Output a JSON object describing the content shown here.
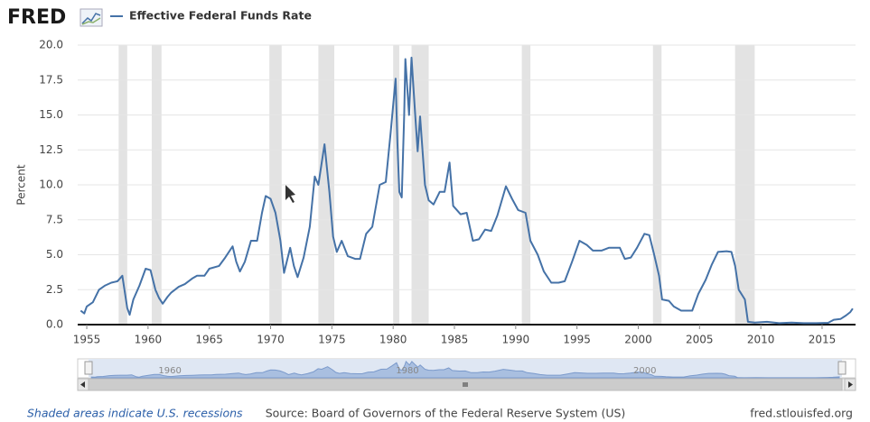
{
  "chart_data": {
    "type": "line",
    "logo": "FRED",
    "ylabel": "Percent",
    "series": [
      {
        "name": "Effective Federal Funds Rate",
        "color": "#4572a7",
        "values": [
          1.0,
          0.8,
          1.3,
          1.6,
          2.5,
          2.8,
          3.0,
          3.1,
          3.5,
          1.2,
          0.7,
          1.8,
          2.8,
          4.0,
          3.9,
          2.5,
          1.9,
          1.5,
          2.0,
          2.3,
          2.7,
          2.9,
          3.3,
          3.5,
          3.5,
          4.0,
          4.2,
          4.8,
          5.6,
          4.5,
          3.8,
          4.5,
          6.0,
          6.0,
          8.0,
          9.2,
          9.0,
          8.0,
          6.0,
          3.7,
          5.5,
          4.2,
          3.4,
          4.8,
          7.0,
          10.6,
          10.0,
          12.9,
          9.5,
          6.3,
          5.2,
          6.0,
          4.9,
          4.7,
          4.7,
          6.5,
          7.0,
          10.0,
          10.2,
          13.8,
          17.6,
          13.0,
          9.5,
          9.1,
          15.0,
          19.0,
          15.0,
          19.1,
          15.0,
          12.4,
          14.9,
          10.0,
          8.9,
          8.6,
          9.5,
          9.5,
          11.6,
          8.5,
          7.9,
          8.0,
          6.0,
          6.1,
          6.8,
          6.7,
          7.8,
          9.9,
          9.0,
          8.2,
          8.0,
          6.0,
          5.0,
          3.8,
          3.0,
          3.0,
          3.1,
          4.5,
          6.0,
          5.7,
          5.3,
          5.3,
          5.5,
          5.5,
          4.7,
          4.8,
          5.5,
          6.5,
          6.4,
          5.0,
          3.5,
          1.8,
          1.7,
          1.3,
          1.0,
          1.0,
          2.2,
          3.2,
          4.3,
          5.2,
          5.25,
          5.2,
          4.2,
          2.5,
          1.8,
          0.2,
          0.15,
          0.2,
          0.1,
          0.15,
          0.1,
          0.1,
          0.13,
          0.35,
          0.4,
          0.65,
          0.9,
          1.15
        ]
      }
    ],
    "x": [
      1954.5,
      1954.8,
      1955.0,
      1955.5,
      1956.0,
      1956.5,
      1957.0,
      1957.5,
      1957.9,
      1958.3,
      1958.5,
      1958.8,
      1959.3,
      1959.8,
      1960.2,
      1960.6,
      1960.9,
      1961.2,
      1961.6,
      1961.9,
      1962.5,
      1963.0,
      1963.6,
      1964.0,
      1964.6,
      1965.0,
      1965.8,
      1966.3,
      1966.9,
      1967.2,
      1967.5,
      1967.9,
      1968.4,
      1968.9,
      1969.3,
      1969.6,
      1970.0,
      1970.4,
      1970.8,
      1971.1,
      1971.6,
      1971.9,
      1972.2,
      1972.7,
      1973.2,
      1973.6,
      1973.9,
      1974.4,
      1974.8,
      1975.1,
      1975.4,
      1975.8,
      1976.3,
      1976.9,
      1977.3,
      1977.8,
      1978.3,
      1978.9,
      1979.4,
      1979.8,
      1980.2,
      1980.35,
      1980.5,
      1980.7,
      1980.9,
      1981.0,
      1981.3,
      1981.5,
      1981.8,
      1982.0,
      1982.2,
      1982.6,
      1982.9,
      1983.3,
      1983.8,
      1984.2,
      1984.6,
      1984.9,
      1985.5,
      1986.0,
      1986.5,
      1987.0,
      1987.5,
      1988.0,
      1988.5,
      1989.2,
      1989.7,
      1990.2,
      1990.8,
      1991.2,
      1991.8,
      1992.3,
      1992.9,
      1993.5,
      1994.0,
      1994.6,
      1995.2,
      1995.8,
      1996.3,
      1997.0,
      1997.6,
      1998.5,
      1998.9,
      1999.4,
      1999.9,
      2000.5,
      2000.9,
      2001.3,
      2001.7,
      2001.95,
      2002.5,
      2002.9,
      2003.5,
      2004.4,
      2004.9,
      2005.5,
      2006.0,
      2006.5,
      2007.2,
      2007.6,
      2007.9,
      2008.2,
      2008.7,
      2008.95,
      2009.5,
      2010.5,
      2011.5,
      2012.5,
      2013.5,
      2014.5,
      2015.5,
      2015.95,
      2016.5,
      2016.95,
      2017.3,
      2017.5
    ],
    "xlim": [
      1954.26,
      2017.73
    ],
    "ylim": [
      0,
      20
    ],
    "xticks": [
      1955,
      1960,
      1965,
      1970,
      1975,
      1980,
      1985,
      1990,
      1995,
      2000,
      2005,
      2010,
      2015
    ],
    "yticks": [
      {
        "value": 0,
        "label": "0.0"
      },
      2.5,
      {
        "value": 5,
        "label": "5.0"
      },
      7.5,
      {
        "value": 10,
        "label": "10.0"
      },
      12.5,
      {
        "value": 15,
        "label": "15.0"
      },
      17.5,
      {
        "value": 20,
        "label": "20.0"
      }
    ],
    "grid": true,
    "recessions": [
      [
        1957.6,
        1958.3
      ],
      [
        1960.3,
        1961.1
      ],
      [
        1969.9,
        1970.9
      ],
      [
        1973.9,
        1975.2
      ],
      [
        1980.0,
        1980.5
      ],
      [
        1981.5,
        1982.9
      ],
      [
        1990.5,
        1991.2
      ],
      [
        2001.2,
        2001.9
      ],
      [
        2007.9,
        2009.5
      ]
    ],
    "navigator_ticks": [
      1960,
      1980,
      2000
    ],
    "recession_note": "Shaded areas indicate U.S. recessions",
    "source": "Source: Board of Governors of the Federal Reserve System (US)",
    "site": "fred.stlouisfed.org"
  }
}
